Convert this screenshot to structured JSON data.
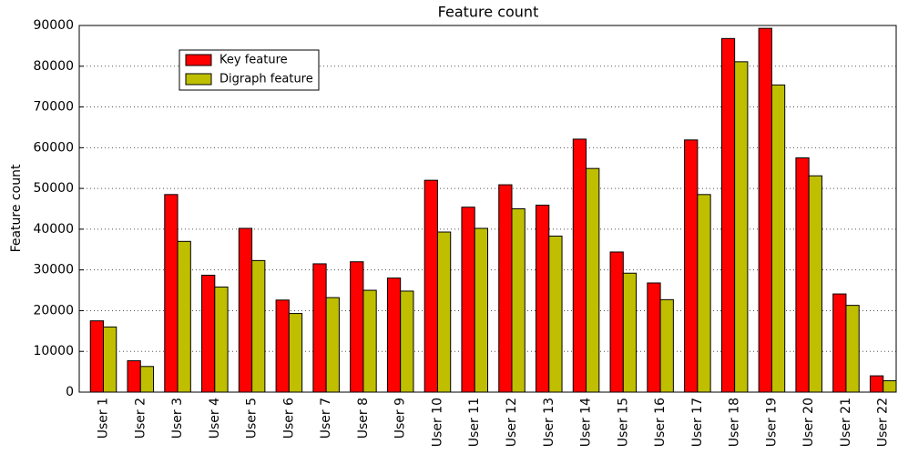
{
  "chart_data": {
    "type": "bar",
    "title": "Feature count",
    "y_label": "Feature count",
    "categories": [
      "User 1",
      "User 2",
      "User 3",
      "User 4",
      "User 5",
      "User 6",
      "User 7",
      "User 8",
      "User 9",
      "User 10",
      "User 11",
      "User 12",
      "User 13",
      "User 14",
      "User 15",
      "User 16",
      "User 17",
      "User 18",
      "User 19",
      "User 20",
      "User 21",
      "User 22"
    ],
    "series": [
      {
        "name": "Key feature",
        "color": "#ff0000",
        "values": [
          17500,
          7700,
          48500,
          28700,
          40200,
          22600,
          31500,
          32000,
          28000,
          52000,
          45400,
          50900,
          45900,
          62100,
          34400,
          26800,
          61900,
          86800,
          89300,
          57500,
          24100,
          4000
        ]
      },
      {
        "name": "Digraph feature",
        "color": "#bfbf00",
        "values": [
          16000,
          6300,
          37000,
          25800,
          32300,
          19300,
          23200,
          25000,
          24800,
          39300,
          40200,
          45000,
          38300,
          54900,
          29200,
          22700,
          48500,
          81100,
          75400,
          53100,
          21300,
          2800
        ]
      }
    ],
    "ylim": [
      0,
      90000
    ],
    "yticks": [
      0,
      10000,
      20000,
      30000,
      40000,
      50000,
      60000,
      70000,
      80000,
      90000
    ],
    "grid": true,
    "legend": "upper left"
  }
}
